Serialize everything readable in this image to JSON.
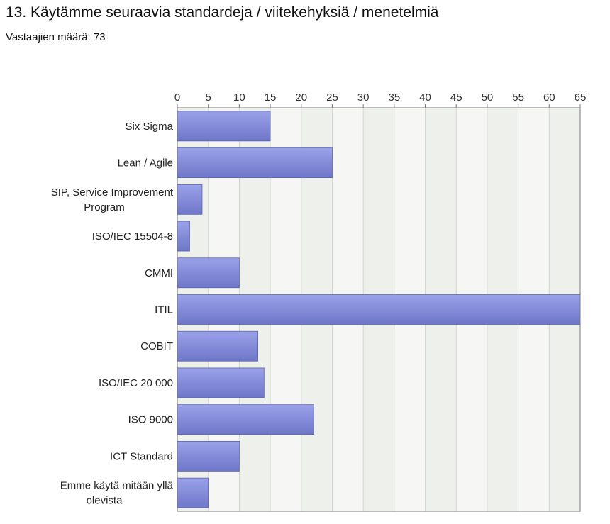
{
  "header": {
    "title": "13. Käytämme seuraavia standardeja / viitekehyksiä / menetelmiä",
    "respondents": "Vastaajien määrä: 73"
  },
  "chart_data": {
    "type": "bar",
    "orientation": "horizontal",
    "title": "",
    "xlabel": "",
    "ylabel": "",
    "categories": [
      [
        "Six Sigma"
      ],
      [
        "Lean / Agile"
      ],
      [
        "SIP, Service Improvement",
        "Program"
      ],
      [
        "ISO/IEC 15504-8"
      ],
      [
        "CMMI"
      ],
      [
        "ITIL"
      ],
      [
        "COBIT"
      ],
      [
        "ISO/IEC 20 000"
      ],
      [
        "ISO 9000"
      ],
      [
        "ICT Standard"
      ],
      [
        "Emme käytä mitään yllä",
        "olevista"
      ]
    ],
    "values": [
      15,
      25,
      4,
      2,
      10,
      65,
      13,
      14,
      22,
      10,
      5
    ],
    "xlim": [
      0,
      65
    ],
    "ticks": [
      0,
      5,
      10,
      15,
      20,
      25,
      30,
      35,
      40,
      45,
      50,
      55,
      60,
      65
    ],
    "axis_position": "top",
    "grid": true,
    "colors": {
      "bar_light": "#9aa2ea",
      "bar_dark": "#6e76c8",
      "bar_border": "#5a62b0",
      "plot_bg_a": "#eef0eb",
      "plot_bg_b": "#f6f7f4",
      "grid": "#d4d6d1",
      "axis": "#777777"
    }
  }
}
